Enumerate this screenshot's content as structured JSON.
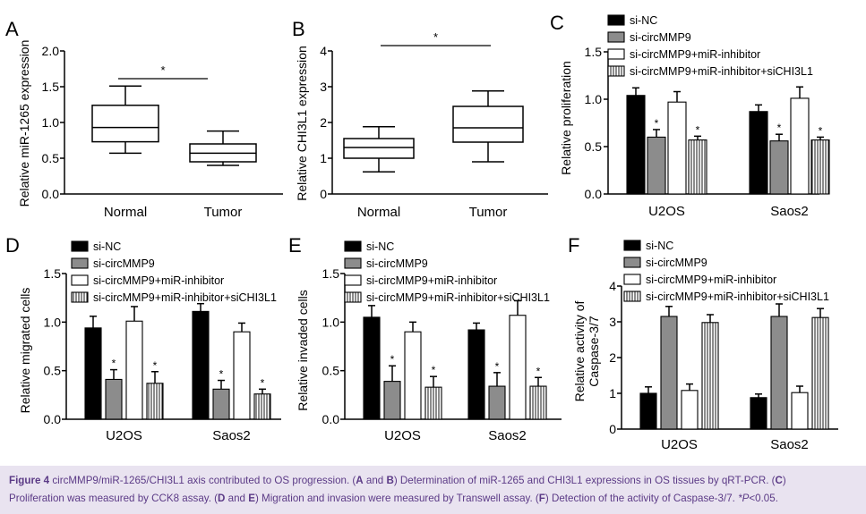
{
  "chart_data": [
    {
      "panel": "A",
      "type": "box",
      "ylabel": "Relative miR-1265 expression",
      "ylim": [
        0,
        2.0
      ],
      "yticks": [
        "0.0",
        "0.5",
        "1.0",
        "1.5",
        "2.0"
      ],
      "categories": [
        "Normal",
        "Tumor"
      ],
      "boxes": [
        {
          "name": "Normal",
          "min": 0.57,
          "q1": 0.73,
          "median": 0.93,
          "q3": 1.24,
          "max": 1.51
        },
        {
          "name": "Tumor",
          "min": 0.4,
          "q1": 0.45,
          "median": 0.57,
          "q3": 0.7,
          "max": 0.88
        }
      ],
      "significance": "*"
    },
    {
      "panel": "B",
      "type": "box",
      "ylabel": "Relative CHI3L1 expression",
      "ylim": [
        0,
        4
      ],
      "yticks": [
        "0",
        "1",
        "2",
        "3",
        "4"
      ],
      "categories": [
        "Normal",
        "Tumor"
      ],
      "boxes": [
        {
          "name": "Normal",
          "min": 0.62,
          "q1": 1.0,
          "median": 1.3,
          "q3": 1.55,
          "max": 1.88
        },
        {
          "name": "Tumor",
          "min": 0.9,
          "q1": 1.45,
          "median": 1.85,
          "q3": 2.45,
          "max": 2.88
        }
      ],
      "significance": "*"
    },
    {
      "panel": "C",
      "type": "bar",
      "ylabel": "Relative proliferation",
      "ylim": [
        0,
        1.5
      ],
      "yticks": [
        "0.0",
        "0.5",
        "1.0",
        "1.5"
      ],
      "categories": [
        "U2OS",
        "Saos2"
      ],
      "series": [
        {
          "name": "si-NC",
          "values": [
            1.04,
            0.87
          ],
          "errors": [
            0.08,
            0.07
          ],
          "stars": [
            "",
            ""
          ]
        },
        {
          "name": "si-circMMP9",
          "values": [
            0.6,
            0.56
          ],
          "errors": [
            0.08,
            0.07
          ],
          "stars": [
            "*",
            "*"
          ]
        },
        {
          "name": "si-circMMP9+miR-inhibitor",
          "values": [
            0.97,
            1.01
          ],
          "errors": [
            0.11,
            0.12
          ],
          "stars": [
            "",
            ""
          ]
        },
        {
          "name": "si-circMMP9+miR-inhibitor+siCHI3L1",
          "values": [
            0.57,
            0.57
          ],
          "errors": [
            0.04,
            0.03
          ],
          "stars": [
            "*",
            "*"
          ]
        }
      ]
    },
    {
      "panel": "D",
      "type": "bar",
      "ylabel": "Relative migrated cells",
      "ylim": [
        0,
        1.5
      ],
      "yticks": [
        "0.0",
        "0.5",
        "1.0",
        "1.5"
      ],
      "categories": [
        "U2OS",
        "Saos2"
      ],
      "series": [
        {
          "name": "si-NC",
          "values": [
            0.94,
            1.11
          ],
          "errors": [
            0.12,
            0.08
          ],
          "stars": [
            "",
            ""
          ]
        },
        {
          "name": "si-circMMP9",
          "values": [
            0.41,
            0.31
          ],
          "errors": [
            0.1,
            0.09
          ],
          "stars": [
            "*",
            "*"
          ]
        },
        {
          "name": "si-circMMP9+miR-inhibitor",
          "values": [
            1.01,
            0.9
          ],
          "errors": [
            0.15,
            0.09
          ],
          "stars": [
            "",
            ""
          ]
        },
        {
          "name": "si-circMMP9+miR-inhibitor+siCHI3L1",
          "values": [
            0.37,
            0.26
          ],
          "errors": [
            0.12,
            0.05
          ],
          "stars": [
            "*",
            "*"
          ]
        }
      ]
    },
    {
      "panel": "E",
      "type": "bar",
      "ylabel": "Relative invaded cells",
      "ylim": [
        0,
        1.5
      ],
      "yticks": [
        "0.0",
        "0.5",
        "1.0",
        "1.5"
      ],
      "categories": [
        "U2OS",
        "Saos2"
      ],
      "series": [
        {
          "name": "si-NC",
          "values": [
            1.05,
            0.92
          ],
          "errors": [
            0.12,
            0.07
          ],
          "stars": [
            "",
            ""
          ]
        },
        {
          "name": "si-circMMP9",
          "values": [
            0.39,
            0.34
          ],
          "errors": [
            0.16,
            0.14
          ],
          "stars": [
            "*",
            "*"
          ]
        },
        {
          "name": "si-circMMP9+miR-inhibitor",
          "values": [
            0.9,
            1.07
          ],
          "errors": [
            0.1,
            0.15
          ],
          "stars": [
            "",
            ""
          ]
        },
        {
          "name": "si-circMMP9+miR-inhibitor+siCHI3L1",
          "values": [
            0.33,
            0.34
          ],
          "errors": [
            0.11,
            0.09
          ],
          "stars": [
            "*",
            "*"
          ]
        }
      ]
    },
    {
      "panel": "F",
      "type": "bar",
      "ylabel_lines": [
        "Relative activity of",
        "Caspase-3/7"
      ],
      "ylim": [
        0,
        4
      ],
      "yticks": [
        "0",
        "1",
        "2",
        "3",
        "4"
      ],
      "categories": [
        "U2OS",
        "Saos2"
      ],
      "series": [
        {
          "name": "si-NC",
          "values": [
            1.0,
            0.88
          ],
          "errors": [
            0.18,
            0.1
          ],
          "stars": [
            "",
            ""
          ]
        },
        {
          "name": "si-circMMP9",
          "values": [
            3.15,
            3.15
          ],
          "errors": [
            0.28,
            0.35
          ],
          "stars": [
            "",
            ""
          ]
        },
        {
          "name": "si-circMMP9+miR-inhibitor",
          "values": [
            1.08,
            1.02
          ],
          "errors": [
            0.18,
            0.18
          ],
          "stars": [
            "",
            ""
          ]
        },
        {
          "name": "si-circMMP9+miR-inhibitor+siCHI3L1",
          "values": [
            2.98,
            3.12
          ],
          "errors": [
            0.22,
            0.25
          ],
          "stars": [
            "",
            ""
          ]
        }
      ]
    }
  ],
  "caption": {
    "figure_label": "Figure 4",
    "title": "circMMP9/miR-1265/CHI3L1 axis contributed to OS progression. (",
    "a": "A",
    "and1": " and ",
    "b": "B",
    "text1": ") Determination of miR-1265 and CHI3L1 expressions in OS tissues by qRT-PCR. (",
    "c": "C",
    "text2": ")",
    "line2_text": "Proliferation was measured by CCK8 assay. (",
    "d": "D",
    "and2": " and ",
    "e": "E",
    "text3": ") Migration and invasion were measured by Transwell assay. (",
    "f": "F",
    "text4": ") Detection of the activity of Caspase-3/7. ",
    "pnote": "*P",
    "pnote_rest": "<0.05."
  }
}
